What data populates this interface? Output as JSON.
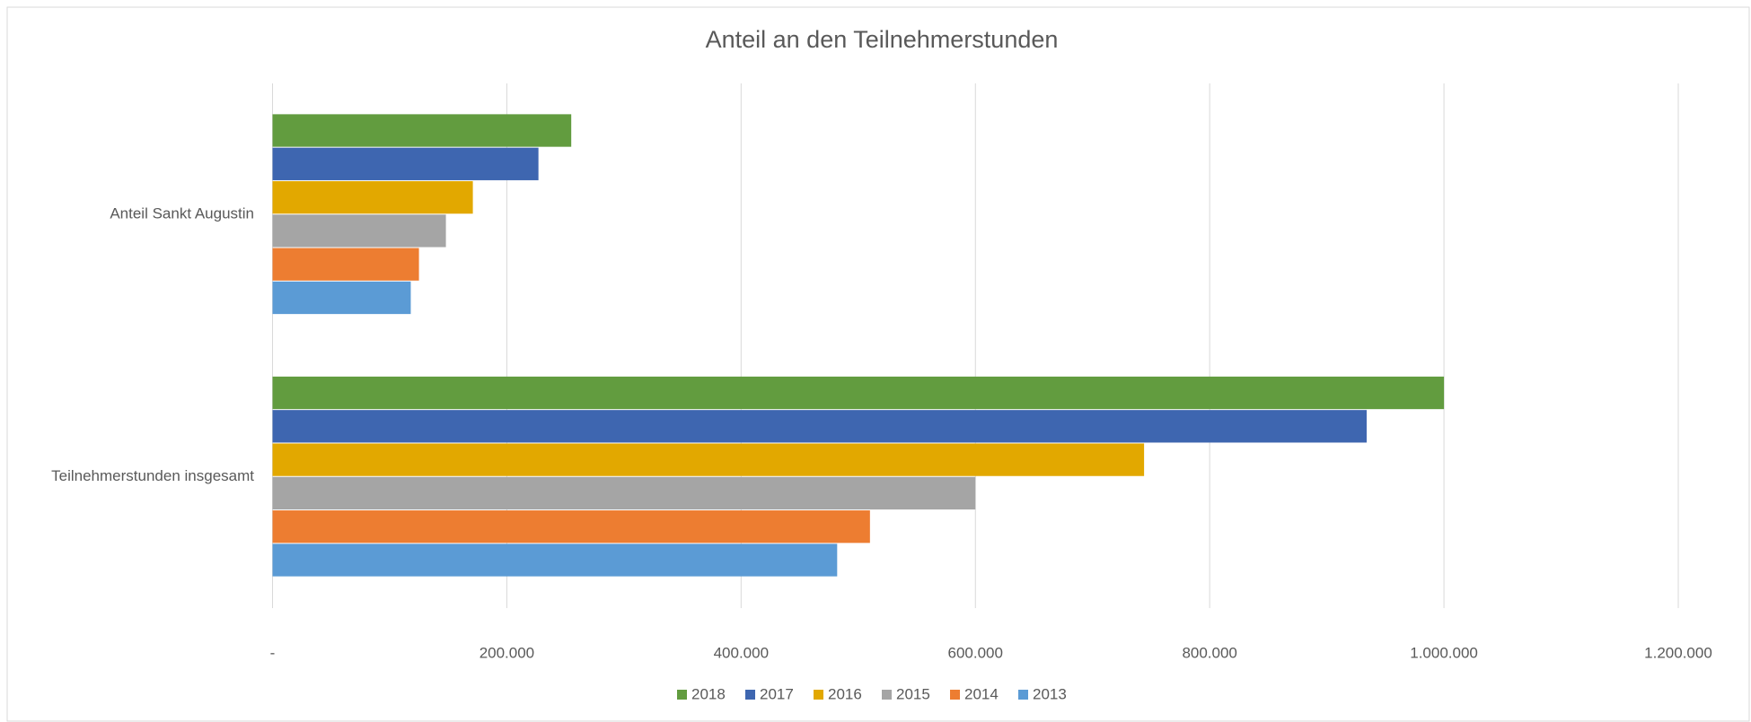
{
  "chart_data": {
    "type": "hbar",
    "title": "Anteil an den Teilnehmerstunden",
    "categories": [
      "Anteil Sankt Augustin",
      "Teilnehmerstunden insgesamt"
    ],
    "series": [
      {
        "name": "2018",
        "color": "#629c3f",
        "values": [
          255000,
          1000000
        ]
      },
      {
        "name": "2017",
        "color": "#3e66b0",
        "values": [
          227000,
          934000
        ]
      },
      {
        "name": "2016",
        "color": "#e2a800",
        "values": [
          171000,
          744000
        ]
      },
      {
        "name": "2015",
        "color": "#a5a5a5",
        "values": [
          148000,
          600000
        ]
      },
      {
        "name": "2014",
        "color": "#ed7d31",
        "values": [
          125000,
          510000
        ]
      },
      {
        "name": "2013",
        "color": "#5b9bd5",
        "values": [
          118000,
          482000
        ]
      }
    ],
    "xlim": [
      0,
      1200000
    ],
    "xticks": [
      {
        "value": 0,
        "label": "-"
      },
      {
        "value": 200000,
        "label": "200.000"
      },
      {
        "value": 400000,
        "label": "400.000"
      },
      {
        "value": 600000,
        "label": "600.000"
      },
      {
        "value": 800000,
        "label": "800.000"
      },
      {
        "value": 1000000,
        "label": "1.000.000"
      },
      {
        "value": 1200000,
        "label": "1.200.000"
      }
    ],
    "grid": true,
    "legend": "bottom"
  }
}
